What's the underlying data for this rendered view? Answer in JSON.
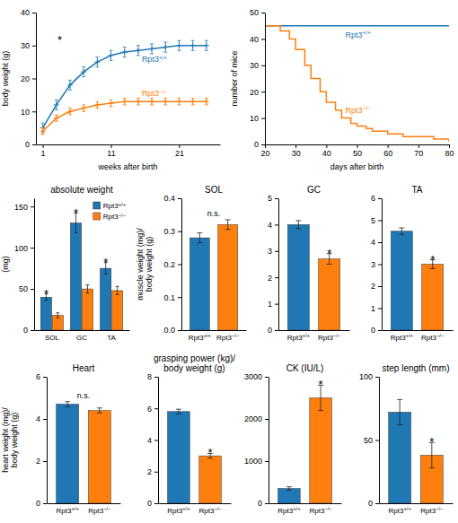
{
  "chart_data": [
    {
      "type": "line",
      "marker": "plus",
      "xlabel": "weeks after birth",
      "ylabel": "body weight (g)",
      "x": [
        1,
        3,
        5,
        7,
        9,
        11,
        13,
        15,
        17,
        19,
        21,
        23,
        25
      ],
      "series": [
        {
          "name": "Rpt3+/+",
          "values": [
            5,
            12,
            18,
            22,
            25,
            27,
            28,
            28.5,
            29,
            29.5,
            30,
            30,
            30
          ],
          "errors": [
            1.5,
            1.5,
            1.5,
            1.5,
            1.5,
            1.5,
            1.5,
            1.5,
            1.5,
            1.5,
            1.5,
            1.5,
            1.5
          ]
        },
        {
          "name": "Rpt3−/−",
          "values": [
            4,
            8,
            10,
            11,
            12,
            12.5,
            13,
            13,
            13,
            13,
            13,
            13,
            13
          ],
          "errors": [
            1.0,
            1.0,
            1.0,
            1.0,
            1.0,
            1.0,
            1.0,
            1.0,
            1.0,
            1.0,
            1.0,
            1.0,
            1.0
          ]
        }
      ],
      "xlim": [
        0,
        27
      ],
      "xticks": [
        1,
        11,
        21
      ],
      "ylim": [
        0,
        40
      ],
      "yticks": [
        0,
        10,
        20,
        30,
        40
      ],
      "annotations": [
        {
          "text": "*",
          "x": 3.5,
          "y": 32
        }
      ]
    },
    {
      "type": "step",
      "xlabel": "days after birth",
      "ylabel": "number of mice",
      "x": [
        20,
        22,
        25,
        28,
        30,
        33,
        35,
        38,
        40,
        43,
        45,
        48,
        50,
        53,
        55,
        60,
        65,
        70,
        75,
        80
      ],
      "series": [
        {
          "name": "Rpt3+/+",
          "values": [
            45,
            45,
            45,
            45,
            45,
            45,
            45,
            45,
            45,
            45,
            45,
            45,
            45,
            45,
            45,
            45,
            45,
            45,
            45,
            45
          ]
        },
        {
          "name": "Rpt3−/−",
          "values": [
            45,
            45,
            43,
            40,
            36,
            30,
            25,
            20,
            16,
            13,
            10,
            8,
            7,
            6,
            5,
            4,
            3,
            3,
            2,
            1
          ]
        }
      ],
      "xlim": [
        20,
        80
      ],
      "xticks": [
        20,
        30,
        40,
        50,
        60,
        70,
        80
      ],
      "ylim": [
        0,
        50
      ],
      "yticks": [
        0,
        10,
        20,
        30,
        40,
        50
      ]
    },
    {
      "type": "bar",
      "title": "absolute weight",
      "ylabel": "(mg)",
      "categories": [
        "SOL",
        "GC",
        "TA"
      ],
      "series": [
        {
          "name": "Rpt3+/+",
          "values": [
            40,
            130,
            75
          ],
          "errors": [
            4,
            12,
            7
          ]
        },
        {
          "name": "Rpt3−/−",
          "values": [
            18,
            50,
            48
          ],
          "errors": [
            3,
            5,
            5
          ]
        }
      ],
      "ylim": [
        0,
        160
      ],
      "yticks": [
        0,
        50,
        100,
        150
      ],
      "legend": "upper right",
      "annotations": [
        {
          "text": "*",
          "x": "SOL",
          "series": "Rpt3+/+"
        },
        {
          "text": "*",
          "x": "GC",
          "series": "Rpt3+/+"
        },
        {
          "text": "*",
          "x": "TA",
          "series": "Rpt3+/+"
        }
      ]
    },
    {
      "type": "bar",
      "title": "SOL",
      "ylabel": "muscle weight (mg)/\nbody weight (g)",
      "categories": [
        "Rpt3+/+",
        "Rpt3−/−"
      ],
      "values": [
        0.28,
        0.32
      ],
      "errors": [
        0.015,
        0.015
      ],
      "ylim": [
        0,
        0.4
      ],
      "yticks": [
        {
          "value": 0,
          "label": "0.0"
        },
        0.1,
        0.2,
        0.3,
        0.4
      ],
      "annotations": [
        {
          "text": "n.s."
        }
      ]
    },
    {
      "type": "bar",
      "title": "GC",
      "categories": [
        "Rpt3+/+",
        "Rpt3−/−"
      ],
      "values": [
        4.0,
        2.7
      ],
      "errors": [
        0.15,
        0.2
      ],
      "ylim": [
        0,
        5
      ],
      "yticks": [
        0,
        1,
        2,
        3,
        4,
        5
      ],
      "annotations": [
        {
          "text": "*",
          "x": "Rpt3−/−"
        }
      ]
    },
    {
      "type": "bar",
      "title": "TA",
      "categories": [
        "Rpt3+/+",
        "Rpt3−/−"
      ],
      "values": [
        4.5,
        3.0
      ],
      "errors": [
        0.15,
        0.2
      ],
      "ylim": [
        0,
        6
      ],
      "yticks": [
        0,
        1,
        2,
        3,
        4,
        5,
        6
      ],
      "annotations": [
        {
          "text": "*",
          "x": "Rpt3−/−"
        }
      ]
    },
    {
      "type": "bar",
      "title": "Heart",
      "ylabel": "heart weight (mg)/\nbody weight (g)",
      "categories": [
        "Rpt3+/+",
        "Rpt3−/−"
      ],
      "values": [
        4.7,
        4.4
      ],
      "errors": [
        0.12,
        0.12
      ],
      "ylim": [
        0,
        6
      ],
      "yticks": [
        0,
        2,
        4,
        6
      ],
      "annotations": [
        {
          "text": "n.s."
        }
      ]
    },
    {
      "type": "bar",
      "title": "grasping power (kg)/\nbody weight (g)",
      "categories": [
        "Rpt3+/+",
        "Rpt3−/−"
      ],
      "values": [
        5.8,
        3.0
      ],
      "errors": [
        0.15,
        0.15
      ],
      "ylim": [
        0,
        8
      ],
      "yticks": [
        0,
        2,
        4,
        6,
        8
      ],
      "annotations": [
        {
          "text": "*",
          "x": "Rpt3−/−"
        }
      ]
    },
    {
      "type": "bar",
      "title": "CK (IU/L)",
      "categories": [
        "Rpt3+/+",
        "Rpt3−/−"
      ],
      "values": [
        350,
        2500
      ],
      "errors": [
        40,
        300
      ],
      "ylim": [
        0,
        3000
      ],
      "yticks": [
        0,
        1000,
        2000,
        3000
      ],
      "annotations": [
        {
          "text": "*",
          "x": "Rpt3−/−"
        }
      ]
    },
    {
      "type": "bar",
      "title": "step length (mm)",
      "categories": [
        "Rpt3+/+",
        "Rpt3−/−"
      ],
      "values": [
        72,
        38
      ],
      "errors": [
        10,
        10
      ],
      "ylim": [
        0,
        100
      ],
      "yticks": [
        0,
        50,
        100
      ],
      "annotations": [
        {
          "text": "*",
          "x": "Rpt3−/−"
        }
      ]
    }
  ]
}
